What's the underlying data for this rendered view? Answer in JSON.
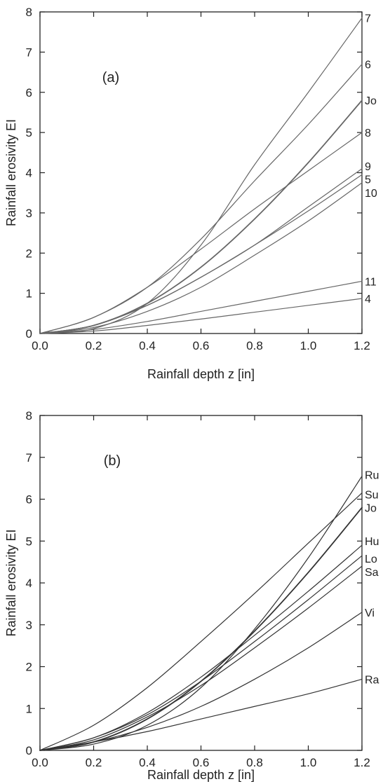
{
  "colors": {
    "axis": "#222222",
    "curve_a": "#666666",
    "curve_b": "#333333"
  },
  "chart_data": [
    {
      "type": "line",
      "panel_label": "(a)",
      "xlabel": "Rainfall depth z [in]",
      "ylabel": "Rainfall erosivity EI",
      "xlim": [
        0,
        1.2
      ],
      "ylim": [
        0,
        8
      ],
      "xticks": [
        "0.0",
        "0.2",
        "0.4",
        "0.6",
        "0.8",
        "1.0",
        "1.2"
      ],
      "yticks": [
        "0",
        "1",
        "2",
        "3",
        "4",
        "5",
        "6",
        "7",
        "8"
      ],
      "grid": false,
      "series_label_position": "right",
      "series": [
        {
          "name": "7",
          "x": [
            0,
            0.2,
            0.4,
            0.6,
            0.8,
            1.0,
            1.2
          ],
          "y": [
            0,
            0.12,
            0.75,
            2.2,
            4.2,
            6.0,
            7.85
          ]
        },
        {
          "name": "6",
          "x": [
            0,
            0.2,
            0.4,
            0.6,
            0.8,
            1.0,
            1.2
          ],
          "y": [
            0,
            0.4,
            1.15,
            2.35,
            3.8,
            5.2,
            6.7
          ]
        },
        {
          "name": "Jo",
          "x": [
            0,
            0.2,
            0.4,
            0.6,
            0.8,
            1.0,
            1.2
          ],
          "y": [
            0,
            0.2,
            0.75,
            1.65,
            2.85,
            4.25,
            5.8
          ]
        },
        {
          "name": "8",
          "x": [
            0,
            0.2,
            0.4,
            0.6,
            0.8,
            1.0,
            1.2
          ],
          "y": [
            0,
            0.4,
            1.15,
            2.1,
            3.1,
            4.05,
            5.0
          ]
        },
        {
          "name": "9",
          "x": [
            0,
            0.2,
            0.4,
            0.6,
            0.8,
            1.0,
            1.2
          ],
          "y": [
            0,
            0.2,
            0.7,
            1.4,
            2.2,
            3.15,
            4.1
          ]
        },
        {
          "name": "5",
          "x": [
            0,
            0.2,
            0.4,
            0.6,
            0.8,
            1.0,
            1.2
          ],
          "y": [
            0,
            0.2,
            0.7,
            1.4,
            2.2,
            3.05,
            3.95
          ]
        },
        {
          "name": "10",
          "x": [
            0,
            0.2,
            0.4,
            0.6,
            0.8,
            1.0,
            1.2
          ],
          "y": [
            0,
            0.15,
            0.55,
            1.15,
            1.95,
            2.8,
            3.75
          ]
        },
        {
          "name": "11",
          "x": [
            0,
            0.2,
            0.4,
            0.6,
            0.8,
            1.0,
            1.2
          ],
          "y": [
            0,
            0.1,
            0.3,
            0.55,
            0.8,
            1.05,
            1.3
          ]
        },
        {
          "name": "4",
          "x": [
            0,
            0.2,
            0.4,
            0.6,
            0.8,
            1.0,
            1.2
          ],
          "y": [
            0,
            0.06,
            0.2,
            0.36,
            0.53,
            0.7,
            0.87
          ]
        }
      ]
    },
    {
      "type": "line",
      "panel_label": "(b)",
      "xlabel": "Rainfall depth z [in]",
      "ylabel": "Rainfall erosivity EI",
      "xlim": [
        0,
        1.2
      ],
      "ylim": [
        0,
        8
      ],
      "xticks": [
        "0.0",
        "0.2",
        "0.4",
        "0.6",
        "0.8",
        "1.0",
        "1.2"
      ],
      "yticks": [
        "0",
        "1",
        "2",
        "3",
        "4",
        "5",
        "6",
        "7",
        "8"
      ],
      "grid": false,
      "series_label_position": "right",
      "series": [
        {
          "name": "Ru",
          "x": [
            0,
            0.2,
            0.4,
            0.6,
            0.8,
            1.0,
            1.2
          ],
          "y": [
            0,
            0.15,
            0.6,
            1.5,
            2.9,
            4.6,
            6.55
          ]
        },
        {
          "name": "Su",
          "x": [
            0,
            0.2,
            0.4,
            0.6,
            0.8,
            1.0,
            1.2
          ],
          "y": [
            0,
            0.6,
            1.5,
            2.6,
            3.75,
            4.95,
            6.15
          ]
        },
        {
          "name": "Jo",
          "x": [
            0,
            0.2,
            0.4,
            0.6,
            0.8,
            1.0,
            1.2
          ],
          "y": [
            0,
            0.2,
            0.75,
            1.65,
            2.85,
            4.25,
            5.8
          ]
        },
        {
          "name": "Hu",
          "x": [
            0,
            0.2,
            0.4,
            0.6,
            0.8,
            1.0,
            1.2
          ],
          "y": [
            0,
            0.3,
            0.9,
            1.75,
            2.75,
            3.8,
            4.9
          ]
        },
        {
          "name": "Lo",
          "x": [
            0,
            0.2,
            0.4,
            0.6,
            0.8,
            1.0,
            1.2
          ],
          "y": [
            0,
            0.3,
            0.85,
            1.65,
            2.6,
            3.6,
            4.65
          ]
        },
        {
          "name": "Sa",
          "x": [
            0,
            0.2,
            0.4,
            0.6,
            0.8,
            1.0,
            1.2
          ],
          "y": [
            0,
            0.25,
            0.8,
            1.55,
            2.45,
            3.4,
            4.4
          ]
        },
        {
          "name": "Vi",
          "x": [
            0,
            0.2,
            0.4,
            0.6,
            0.8,
            1.0,
            1.2
          ],
          "y": [
            0,
            0.2,
            0.55,
            1.05,
            1.7,
            2.45,
            3.3
          ]
        },
        {
          "name": "Ra",
          "x": [
            0,
            0.2,
            0.4,
            0.6,
            0.8,
            1.0,
            1.2
          ],
          "y": [
            0,
            0.2,
            0.45,
            0.75,
            1.05,
            1.35,
            1.7
          ]
        }
      ]
    }
  ]
}
